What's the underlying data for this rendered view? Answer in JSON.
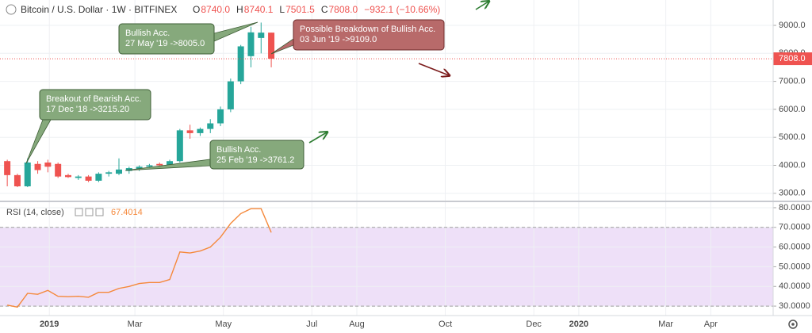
{
  "chart_data": [
    {
      "type": "candlestick",
      "title": "Bitcoin / U.S. Dollar · 1W · BITFINEX",
      "legend_values": [
        {
          "key": "O",
          "text": "8740.0"
        },
        {
          "key": "H",
          "text": "8740.1"
        },
        {
          "key": "L",
          "text": "7501.5"
        },
        {
          "key": "C",
          "text": "7808.0"
        },
        {
          "key": "",
          "text": "−932.1 (−10.66%)"
        }
      ],
      "x": [
        -29,
        -22,
        -15,
        -8,
        -1,
        6,
        13,
        20,
        27,
        34,
        41,
        48,
        55,
        62,
        69,
        76,
        83,
        90,
        97,
        104,
        111,
        118,
        125,
        132,
        139,
        146,
        153
      ],
      "open": [
        4150,
        3650,
        3250,
        4050,
        4100,
        4050,
        3650,
        3550,
        3600,
        3450,
        3700,
        3700,
        3800,
        3850,
        3950,
        4050,
        4000,
        4150,
        5250,
        5150,
        5300,
        5500,
        6000,
        7000,
        7900,
        8550,
        8740.0
      ],
      "high": [
        4200,
        3700,
        4250,
        4150,
        4200,
        4100,
        3700,
        3650,
        3650,
        3750,
        3800,
        4250,
        3950,
        4000,
        4050,
        4100,
        4200,
        5300,
        5450,
        5350,
        5650,
        6100,
        7100,
        8300,
        8950,
        9100,
        8740.1
      ],
      "low": [
        3250,
        3220,
        3220,
        3700,
        3750,
        3550,
        3550,
        3480,
        3400,
        3400,
        3600,
        3650,
        3700,
        3800,
        3900,
        3950,
        3950,
        4100,
        4950,
        5050,
        5150,
        5400,
        5900,
        6900,
        7500,
        8000,
        7501.5
      ],
      "close": [
        3650,
        3250,
        4100,
        3830,
        3950,
        3600,
        3580,
        3600,
        3450,
        3700,
        3750,
        3850,
        3900,
        3950,
        4000,
        4000,
        4150,
        5250,
        5150,
        5300,
        5500,
        6000,
        7000,
        8250,
        8750,
        8740,
        7808.0
      ],
      "up_color": "#26a69a",
      "down_color": "#ef5350",
      "last_label": "7808.0",
      "ylim": [
        2740,
        9906
      ],
      "yticks": [
        {
          "value": 3000,
          "label": "3000.0"
        },
        {
          "value": 4000,
          "label": "4000.0"
        },
        {
          "value": 5000,
          "label": "5000.0"
        },
        {
          "value": 6000,
          "label": "6000.0"
        },
        {
          "value": 7000,
          "label": "7000.0"
        },
        {
          "value": 8000,
          "label": "8000.0"
        },
        {
          "value": 9000,
          "label": "9000.0"
        }
      ],
      "grid": true,
      "annotations": [
        {
          "lines": [
            "Breakout of Bearish Acc.",
            "17 Dec '18 ->3215.20"
          ],
          "color": "#86a97c"
        },
        {
          "lines": [
            "Bullish Acc.",
            "27 May '19 ->8005.0"
          ],
          "color": "#86a97c"
        },
        {
          "lines": [
            "Possible Breakdown of Bullish Acc.",
            "03 Jun '19 ->9109.0"
          ],
          "color": "#b86a6a"
        },
        {
          "lines": [
            "Bullish Acc.",
            "25 Feb '19 ->3761.2"
          ],
          "color": "#86a97c"
        }
      ]
    },
    {
      "type": "line",
      "x": [
        -29,
        -22,
        -15,
        -8,
        -1,
        6,
        13,
        20,
        27,
        34,
        41,
        48,
        55,
        62,
        69,
        76,
        83,
        90,
        97,
        104,
        111,
        118,
        125,
        132,
        139,
        146,
        153
      ],
      "series": [
        {
          "name": "RSI (14, close)",
          "color": "#f5883a",
          "values": [
            30.5,
            29.5,
            36.5,
            36,
            38,
            35,
            34.8,
            35,
            34.5,
            37,
            37,
            39,
            40,
            41.5,
            42,
            42,
            43.5,
            57.5,
            57,
            58,
            60,
            65,
            72,
            77,
            79.5,
            79.5,
            67.4014
          ]
        }
      ],
      "band": [
        30,
        70
      ],
      "band_color": "#eee0f8",
      "ylim": [
        25.2,
        82.8
      ],
      "yticks": [
        {
          "value": 30,
          "label": "30.0000"
        },
        {
          "value": 40,
          "label": "40.0000"
        },
        {
          "value": 50,
          "label": "50.0000"
        },
        {
          "value": 60,
          "label": "60.0000"
        },
        {
          "value": 70,
          "label": "70.0000"
        },
        {
          "value": 80,
          "label": "80.0000"
        }
      ],
      "xlim": [
        -34,
        499
      ],
      "xticks": [
        {
          "value": 0,
          "label": "2019"
        },
        {
          "value": 59,
          "label": "Mar"
        },
        {
          "value": 120,
          "label": "May"
        },
        {
          "value": 181,
          "label": "Jul"
        },
        {
          "value": 212,
          "label": "Aug"
        },
        {
          "value": 273,
          "label": "Oct"
        },
        {
          "value": 334,
          "label": "Dec"
        },
        {
          "value": 365,
          "label": "2020"
        },
        {
          "value": 425,
          "label": "Mar"
        },
        {
          "value": 456,
          "label": "Apr"
        }
      ],
      "grid": true
    }
  ]
}
